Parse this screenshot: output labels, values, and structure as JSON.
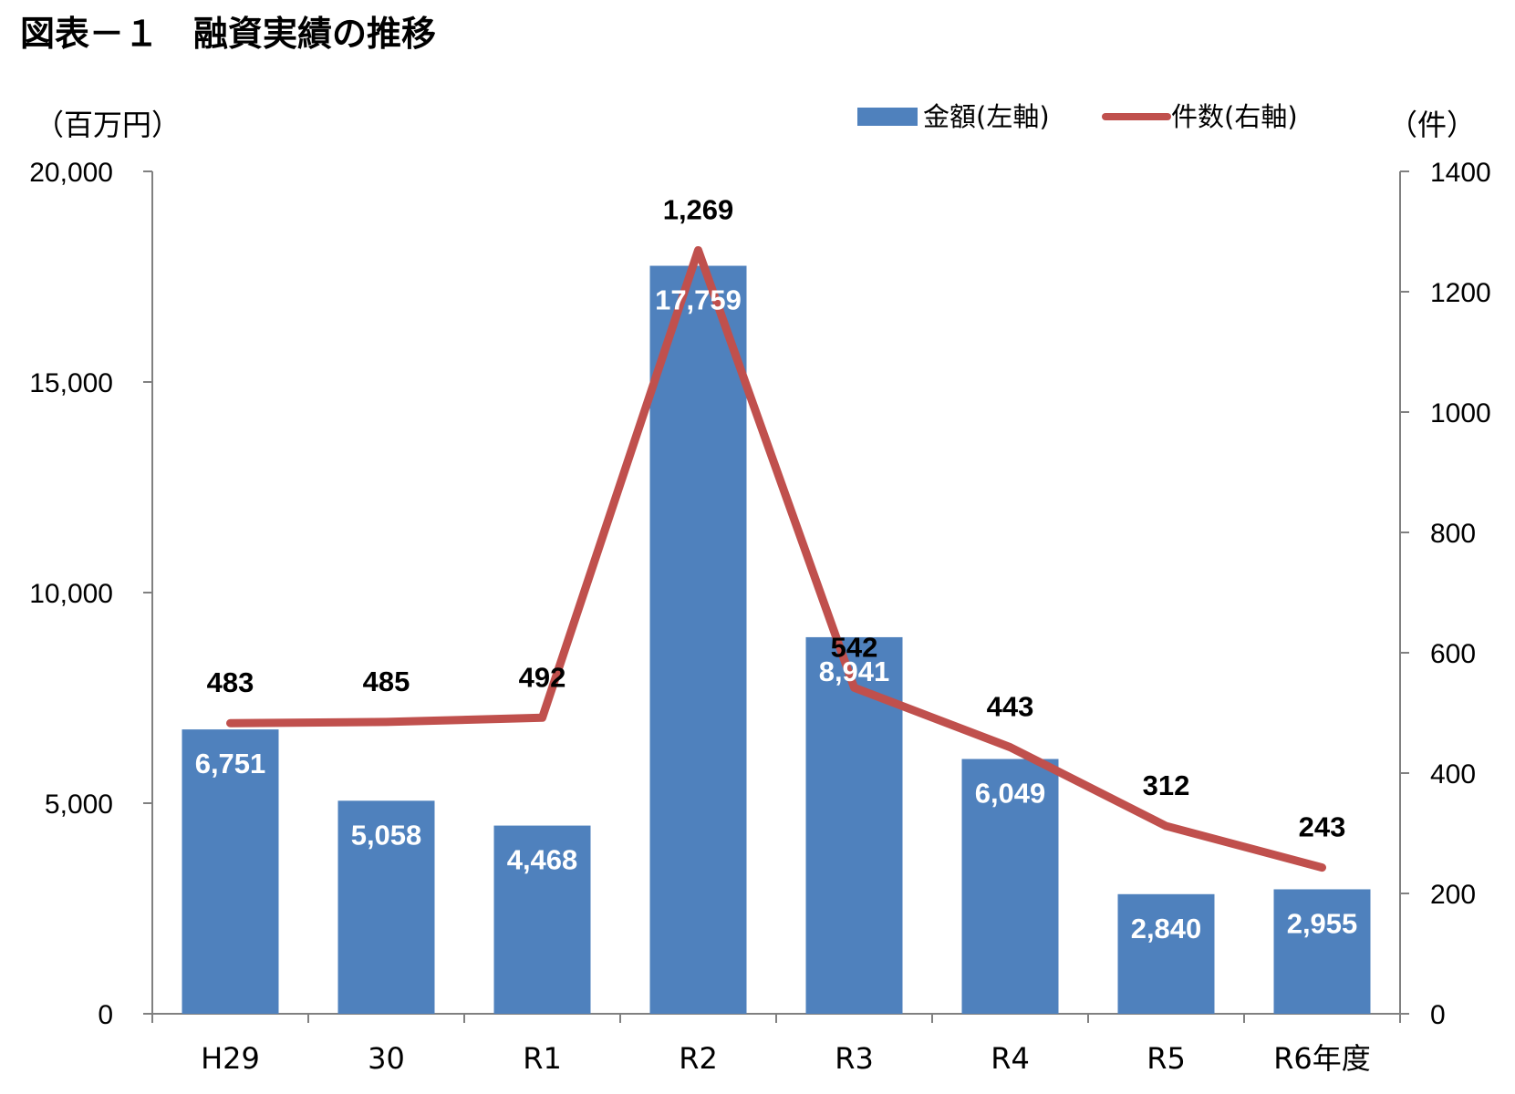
{
  "chart_data": {
    "type": "bar",
    "title": "図表－１　融資実績の推移",
    "categories": [
      "H29",
      "30",
      "R1",
      "R2",
      "R3",
      "R4",
      "R5",
      "R6年度"
    ],
    "series": [
      {
        "name": "金額(左軸)",
        "type": "bar",
        "axis": "left",
        "color": "#4F81BD",
        "values": [
          6751,
          5058,
          4468,
          17759,
          8941,
          6049,
          2840,
          2955
        ],
        "labels": [
          "6,751",
          "5,058",
          "4,468",
          "17,759",
          "8,941",
          "6,049",
          "2,840",
          "2,955"
        ]
      },
      {
        "name": "件数(右軸)",
        "type": "line",
        "axis": "right",
        "color": "#C0504D",
        "values": [
          483,
          485,
          492,
          1269,
          542,
          443,
          312,
          243
        ],
        "labels": [
          "483",
          "485",
          "492",
          "1,269",
          "542",
          "443",
          "312",
          "243"
        ]
      }
    ],
    "y_left": {
      "unit_label": "（百万円）",
      "ylim": [
        0,
        20000
      ],
      "ticks": [
        0,
        5000,
        10000,
        15000,
        20000
      ],
      "tick_labels": [
        "0",
        "5,000",
        "10,000",
        "15,000",
        "20,000"
      ]
    },
    "y_right": {
      "unit_label": "（件）",
      "ylim": [
        0,
        1400
      ],
      "ticks": [
        0,
        200,
        400,
        600,
        800,
        1000,
        1200,
        1400
      ],
      "tick_labels": [
        "0",
        "200",
        "400",
        "600",
        "800",
        "1000",
        "1200",
        "1400"
      ]
    },
    "grid": false,
    "legend_position": "top-right"
  }
}
